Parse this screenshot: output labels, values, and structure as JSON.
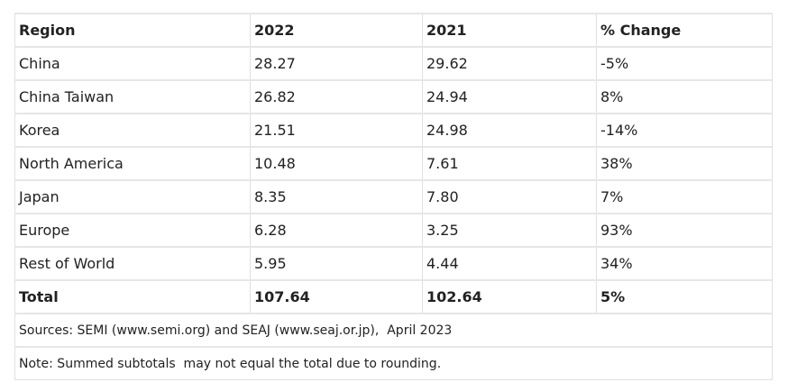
{
  "table": {
    "header": [
      "Region",
      "2022",
      "2021",
      "% Change"
    ],
    "rows": [
      [
        "China",
        "28.27",
        "29.62",
        "-5%"
      ],
      [
        "China Taiwan",
        "26.82",
        "24.94",
        "8%"
      ],
      [
        "Korea",
        "21.51",
        "24.98",
        "-14%"
      ],
      [
        "North America",
        "10.48",
        "7.61",
        "38%"
      ],
      [
        "Japan",
        "8.35",
        "7.80",
        "7%"
      ],
      [
        "Europe",
        "6.28",
        "3.25",
        "93%"
      ],
      [
        "Rest of World",
        "5.95",
        "4.44",
        "34%"
      ]
    ],
    "total": [
      "Total",
      "107.64",
      "102.64",
      "5%"
    ]
  },
  "notes": [
    "Sources: SEMI (www.semi.org) and SEAJ (www.seaj.or.jp),  April 2023",
    "Note: Summed subtotals  may not equal the total due to rounding."
  ]
}
